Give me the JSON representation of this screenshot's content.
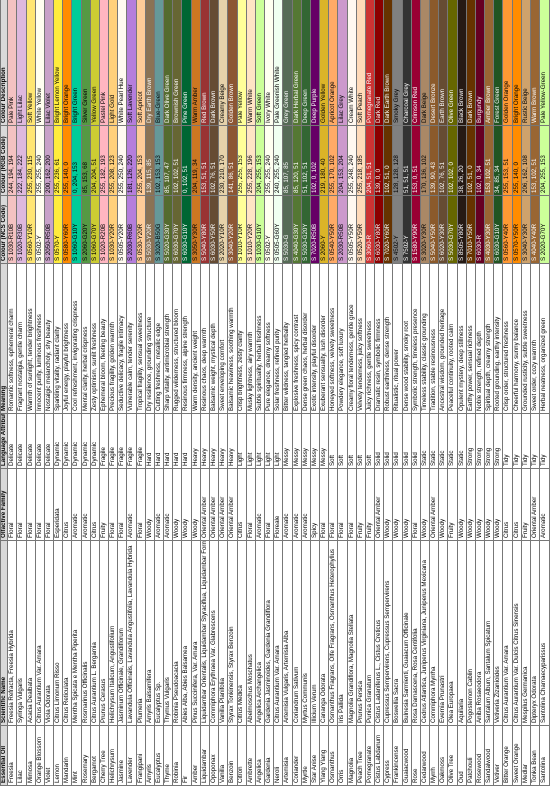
{
  "table": {
    "header": [
      "Essential Oil",
      "Scientific Name",
      "Olfactive Family",
      "Language Attribute",
      "Meaning",
      "Colour (NCS Code)",
      "Colour (RGB Code)",
      "Colour Description"
    ],
    "rows": [
      [
        "Freesia",
        "Freesia Refracta, Freesia Hybrida",
        "Floral",
        "Delicate",
        "Romantic softness, ephemeral charm",
        "S 1030-R10B",
        "244, 194, 194",
        "Pale Pink"
      ],
      [
        "Lilac",
        "Syringa Vulgaris",
        "Floral",
        "Delicate",
        "Fragrant nostalgia, gentle charm",
        "S 1020-R30B",
        "222, 184, 222",
        "Light Lilac"
      ],
      [
        "Mimosa",
        "Acacia Dealbata",
        "Floral",
        "Delicate",
        "Warmth of sunlight, tender brightness",
        "S 0560-Y10R",
        "255, 230, 115",
        "Soft Yellow"
      ],
      [
        "Orange Blossom",
        "Citrus Aurantium Var. Amara",
        "Floral",
        "Delicate",
        "Innocent purity, luminous freshness",
        "S 0502-Y",
        "255, 255, 240",
        "White Yellow"
      ],
      [
        "Violet",
        "Viola Odorata",
        "Floral",
        "Delicate",
        "Nostalgic melancholy, shy beauty",
        "S 2050-R50B",
        "200, 162, 200",
        "Lilac Violet"
      ],
      [
        "Lemon",
        "Citrus Limonum Risso",
        "Esperidata",
        "Dynamic",
        "Sparkling vitality, radiant clarity",
        "S 0570-Y",
        "255, 236, 61",
        "Bright Lemon Yellow"
      ],
      [
        "Mandarin",
        "Citrus Reticulata",
        "Citrus",
        "Dynamic",
        "Joyful energy, playful brightness",
        "S 0580-Y60R",
        "255, 140, 0",
        "Bright Orange"
      ],
      [
        "Mint",
        "Mentha Spicata e Mentha Piperita",
        "Aromatic",
        "Dynamic",
        "Cool refreshment, invigorating crispness",
        "S 1060-G10Y",
        "0, 204, 153",
        "Bright Green"
      ],
      [
        "Rosemary",
        "Rosmarinus Officinalis",
        "Aromatic",
        "Dynamic",
        "Mental clarity, herbal crispness",
        "S 2060-G20Y",
        "85, 153, 68",
        "Silver Green"
      ],
      [
        "Bergamot",
        "Citrus Aurantium L. Bergamia",
        "Citrus",
        "Dynamic",
        "Zesty optimism, sunlit freshness",
        "S 1060-G70Y",
        "204, 204, 51",
        "Yellow Green"
      ],
      [
        "Cherry Tree",
        "Prunus Cerasus",
        "Fruity",
        "Fragile",
        "Ephemeral bloom, fleeting beauty",
        "S 1020-R20B",
        "255, 182, 193",
        "Pastel Pink"
      ],
      [
        "Helichrysum",
        "Helichrysum Italicum, Angustifolium",
        "Floral",
        "Fragile",
        "Precious fragility, golden warmth",
        "S 1030-Y20R",
        "255, 208, 123",
        "Light Gold"
      ],
      [
        "Jasmine",
        "Jasminum Officinale, Grandiflorum",
        "Floral",
        "Fragile",
        "Seductive delicacy, fragile intimacy",
        "S 0505-Y20R",
        "255, 250, 240",
        "White Pearl Hue"
      ],
      [
        "Lavender",
        "Lavandula Officinalis, Lavandula Angustifolia, Lavandula Hybrida",
        "Aromatic",
        "Fragile",
        "Vulnerable calm, tender serenity",
        "S 2030-R60B",
        "181, 126, 220",
        "Soft Lavender"
      ],
      [
        "Frangipani",
        "Plumeria",
        "Floral",
        "Fragile",
        "Tropical fragility, sensual sweetness",
        "S 0530-Y20R",
        "255, 204, 153",
        "Soft Apricot"
      ],
      [
        "Amyris",
        "Amyris Balsamifera",
        "Woody",
        "Hard",
        "Dry resilience, grounding structure",
        "S 5030-Y20R",
        "139, 115, 85",
        "Dry Earth Brown"
      ],
      [
        "Eucalyptus",
        "Eucalyptus Sp.",
        "Aromatic",
        "Hard",
        "Cutting freshness, metallic edge",
        "S 3020-B50G",
        "102, 153, 153",
        "Blue-Green"
      ],
      [
        "Thyme",
        "Thymus Vulgaris",
        "Aromatic",
        "Hard",
        "Sharp vitality, antimicrobial strength",
        "S 5020-G30Y",
        "85, 107, 47",
        "Dark Olive Green"
      ],
      [
        "Robinia",
        "Robinia Pseudoacacia",
        "Woody",
        "Hard",
        "Rugged wilderness, structured bloom",
        "S 6030-G70Y",
        "102, 102, 51",
        "Brownish Green"
      ],
      [
        "Fir",
        "Abies Alba, Abies Balsamea",
        "Woody",
        "Hard",
        "Resinous firmness, alpine strength",
        "S 6030-G10Y",
        "0, 102, 51",
        "Pine Green"
      ],
      [
        "Amber",
        "Pinus Succinifera, Var. Amara",
        "Woody",
        "Heavy",
        "Warm density, ancient weight",
        "S 3050-Y30R",
        "204, 119, 34",
        "Warm Amber"
      ],
      [
        "Liquidambar",
        "Liquidambar Orientalis, Liquidambar Styraciflua, Liquidambar Formosa",
        "Oriental Amber",
        "Heavy",
        "Resinous chaos, deep warmth",
        "S 5040-Y80R",
        "153, 51, 51",
        "Red Brown"
      ],
      [
        "Opoponax",
        "Commiphora Erythraea Var. Glabrescens",
        "Oriental Amber",
        "Heavy",
        "Balsamic weight, mystical depth",
        "S 6030-Y50R",
        "102, 76, 51",
        "Dark Brown"
      ],
      [
        "Vanilla",
        "Vanilla Planifolia",
        "Oriental Amber",
        "Heavy",
        "Sweet enveloping comfort",
        "S 2020-Y10R",
        "230, 210, 170",
        "Creamy Beige"
      ],
      [
        "Benzoin",
        "Styrax Tonkinensis, Styrax Benzoin",
        "Oriental Amber",
        "Heavy",
        "Balsamic heaviness, soothing warmth",
        "S 3040-Y20R",
        "141, 86, 51",
        "Golden Brown"
      ],
      [
        "Citron",
        "Citrus Medica",
        "Citrus",
        "Light",
        "Crisp brightness, zesty clarity",
        "S 1010-Y10R",
        "255, 255, 153",
        "Pale Yellow"
      ],
      [
        "Ambrette",
        "Abelmoschus Moschatus",
        "Floral",
        "Light",
        "Musky lightness, airy warmth",
        "S 1010-Y20R",
        "255, 228, 196",
        "Warm White"
      ],
      [
        "Angelica",
        "Angelica Archangelica",
        "Aromatic",
        "Light",
        "Subtle spirituality, herbal freshness",
        "S 1030-G10Y",
        "204, 255, 153",
        "Soft Green"
      ],
      [
        "Gardenia",
        "Gardenia Jasminoides, Gardenia Grandiflora",
        "Floral",
        "Light",
        "Pure elegance, dreamy softness",
        "S 0502-Y",
        "255, 255, 240",
        "Ivory White"
      ],
      [
        "Neroli",
        "Citrus Aurantium Var. Amara",
        "Floreale",
        "Light",
        "Solar freshness, refined purity",
        "S 0505-G60Y",
        "240, 255, 240",
        "Pale Greenish White"
      ],
      [
        "Artemisia",
        "Artemisia Vulgaris, Artemisia Alba",
        "Aromatic",
        "Messy",
        "Bitter wildness, tangled herbality",
        "S 5030-G",
        "85, 107, 85",
        "Grey Green"
      ],
      [
        "Coriander",
        "Coriandrum Sativum",
        "Aromatic",
        "Messy",
        "Explosive freshness, spicy contrast",
        "S 4040-G30Y",
        "85, 120, 51",
        "Dark Herbal Green"
      ],
      [
        "Myrtle",
        "Myrtus Communis",
        "Aromatic",
        "Messy",
        "Dense green chaos, herbal disorder",
        "S 5030-G20Y",
        "51, 102, 51",
        "Deep Green"
      ],
      [
        "Star Anise",
        "Illicium Verum",
        "Spicy",
        "Messy",
        "Exotic intensity, playful disorder",
        "S 7020-R50B",
        "102, 0, 102",
        "Deep Purple"
      ],
      [
        "Ylang Ylang",
        "Cananga Odorata",
        "Floral",
        "Messy",
        "Exuberant sensuality, lush disorder",
        "S 2060-Y",
        "219, 180, 40",
        "Golden Yellow"
      ],
      [
        "Osmanthus",
        "Osmanthus Fragrans, Olfe Fragrans, Osmanthus Heterophyllus",
        "Floral",
        "Soft",
        "Honeyed softness, velvety sweetness",
        "S 0540-Y50R",
        "255, 170, 102",
        "Apricot Orange"
      ],
      [
        "Orris",
        "Iris Pallida",
        "Floral",
        "Soft",
        "Powdery elegance, soft luxury",
        "S 2030-R50B",
        "204, 153, 204",
        "Lilac Grey"
      ],
      [
        "Magnolia",
        "Magnolia Grandiflora, Magnolia Stellata",
        "Floral",
        "Soft",
        "Creamy floral tenderness, gentle grace",
        "S 0505-Y50R",
        "255, 248, 240",
        "Cream White"
      ],
      [
        "Peach Tree",
        "Prunus Persica",
        "Fruity",
        "Soft",
        "Velvety tenderness, juicy softness",
        "S 0520-Y50R",
        "255, 218, 185",
        "Soft Peach"
      ],
      [
        "Pomegranate",
        "Punica Granatum",
        "Fruity",
        "Soft",
        "Juicy richness, gentle sweetness",
        "S 3060-R",
        "204, 51, 51",
        "Pomegranate Red"
      ],
      [
        "Cistus Labdanum",
        "Cistus Ladaniferus L., Cistus Creticus",
        "Oriental Amber",
        "Solid",
        "Dramatic resin, symbolic firmness",
        "S 6030-Y80R",
        "139, 0, 0",
        "Dark Red"
      ],
      [
        "Cypress",
        "Cupressus Sempervirens, Cupressus Sempervirens",
        "Woody",
        "Solid",
        "Robust earthiness, dense strength",
        "S 7020-Y60R",
        "102, 51, 0",
        "Dark Earth Brown"
      ],
      [
        "Frankincense",
        "Boswellia Sacra",
        "Woody",
        "Solid",
        "Ritualistic, ritual power",
        "S 4502-Y",
        "128, 128, 128",
        "Smoky Grey"
      ],
      [
        "Guaiacwood",
        "Bulnesia Sarmienti, Guaiacum Officinale",
        "Woody",
        "Solid",
        "Dense wood stability, smoky root",
        "S 7502-Y",
        "51, 51, 51",
        "Charcoal Grey"
      ],
      [
        "Rose",
        "Rosa Damascena, Rosa Centifolia",
        "Floral",
        "Solid",
        "Symbolic strength, timeless presence",
        "S 1580-Y90R",
        "153, 0, 51",
        "Crimson Red"
      ],
      [
        "Cedarwood",
        "Cedrus Atlantica, Juniperus Virginiana, Juniperus Mexicana",
        "Woody",
        "Static",
        "Timeless stability, classic grounding",
        "S 3020-Y30R",
        "170, 136, 102",
        "Dark Beige"
      ],
      [
        "Myrrh",
        "Commiphora Myrrha",
        "Oriental Amber",
        "Static",
        "Tradition, stable resinousness",
        "S 5040-Y50R",
        "139, 90, 43",
        "Desert Bronze"
      ],
      [
        "Oakmoss",
        "Evernia Prunastri",
        "Woody",
        "Static",
        "Ancestral wisdom, grounded heritage",
        "S 6020-Y30R",
        "102, 76, 51",
        "Earth Brown"
      ],
      [
        "Olive Tree",
        "Olea Europaea",
        "Fruity",
        "Static",
        "Peaceful continuity, rooted calm",
        "S 5030-G70Y",
        "102, 102, 0",
        "Olive Green"
      ],
      [
        "Oud",
        "Aquilaria",
        "Woody",
        "Static",
        "Opulent mystery, deep stillness",
        "S 8505-Y80R",
        "38, 26, 20",
        "Black Brown"
      ],
      [
        "Patchouli",
        "Pogostemon Cablin",
        "Woody",
        "Strong",
        "Earthy power, sensual richness",
        "S 7010-Y50R",
        "102, 51, 0",
        "Dark Brown"
      ],
      [
        "Rosewood",
        "Aniba Rosaeodora",
        "Woody",
        "Strong",
        "Noble strength, refined depth",
        "S 6030-R",
        "102, 0, 34",
        "Burgundy"
      ],
      [
        "Sandalwood",
        "Santalum Album, Santalum Spicatum",
        "Woody",
        "Strong",
        "Spiritual depth, creamy strength",
        "S 4030-Y30R",
        "153, 102, 51",
        "Amber Brown"
      ],
      [
        "Vetiver",
        "Vetiveria Zizanioides",
        "Woody",
        "Strong",
        "Rooted grounding, earthy intensity",
        "S 6030-G10Y",
        "34, 85, 34",
        "Forest Green"
      ],
      [
        "Bitter Orange",
        "Citrus Aurantium Var. Amara",
        "Citrus",
        "Tidy",
        "Crisp order, structured freshness",
        "S 0560-Y40R",
        "255, 153, 51",
        "Golden Orange"
      ],
      [
        "Sweet Orange",
        "Citrus Aurantium Var. Dulcis Citrus Sinensis",
        "Citrus",
        "Tidy",
        "Cheerful harmony, sunny balance",
        "S 0570-Y50R",
        "255, 140, 0",
        "Bright Orange"
      ],
      [
        "Medlar",
        "Mespilus Germanica",
        "Fruity",
        "Tidy",
        "Grounded rusticity, subtle sweetness",
        "S 3040-Y30R",
        "206, 162, 108",
        "Rustic Beige"
      ],
      [
        "Tonka Bean",
        "Dipteryx Odorata",
        "Oriental Amber",
        "Tidy",
        "Sweet order, cozy warmth",
        "S 4040-Y40R",
        "153, 102, 51",
        "Warm Brown"
      ],
      [
        "Santolina",
        "Santolina Chamaecyparissus",
        "Aromatic",
        "Tidy",
        "Herbal neatness, organized green",
        "S 2020-G70Y",
        "204, 255, 153",
        "Pale Yellow-Green"
      ]
    ]
  }
}
